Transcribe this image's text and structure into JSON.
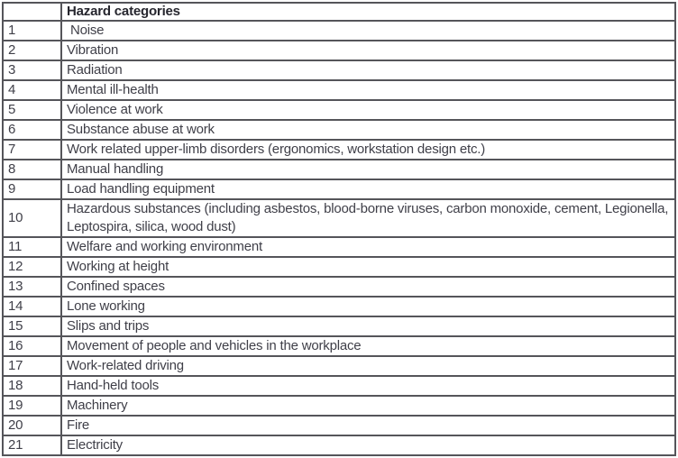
{
  "colors": {
    "border": "#55555a",
    "header_text": "#26262e",
    "body_text": "#3f3f48",
    "background": "#ffffff"
  },
  "table": {
    "header": {
      "index_label": "",
      "title": "Hazard categories"
    },
    "rows": [
      {
        "num": "1",
        "label": " Noise"
      },
      {
        "num": "2",
        "label": "Vibration"
      },
      {
        "num": "3",
        "label": "Radiation"
      },
      {
        "num": "4",
        "label": "Mental ill-health"
      },
      {
        "num": "5",
        "label": "Violence at work"
      },
      {
        "num": "6",
        "label": "Substance abuse at work"
      },
      {
        "num": "7",
        "label": "Work related upper-limb disorders (ergonomics, workstation design etc.)"
      },
      {
        "num": "8",
        "label": "Manual handling"
      },
      {
        "num": "9",
        "label": "Load handling equipment"
      },
      {
        "num": "10",
        "label": "Hazardous substances (including asbestos, blood-borne viruses, carbon monoxide, cement, Legionella,\nLeptospira, silica, wood dust)"
      },
      {
        "num": "11",
        "label": "Welfare and working environment"
      },
      {
        "num": "12",
        "label": "Working at height"
      },
      {
        "num": "13",
        "label": "Confined spaces"
      },
      {
        "num": "14",
        "label": "Lone working"
      },
      {
        "num": "15",
        "label": "Slips and trips"
      },
      {
        "num": "16",
        "label": "Movement of people and vehicles in the workplace"
      },
      {
        "num": "17",
        "label": "Work-related driving"
      },
      {
        "num": "18",
        "label": "Hand-held tools"
      },
      {
        "num": "19",
        "label": "Machinery"
      },
      {
        "num": "20",
        "label": "Fire"
      },
      {
        "num": "21",
        "label": "Electricity"
      }
    ]
  }
}
